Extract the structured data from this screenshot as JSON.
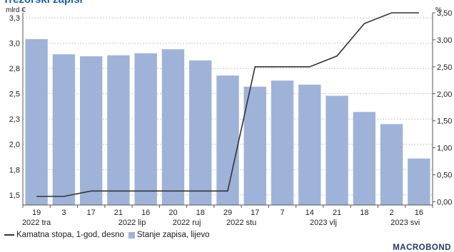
{
  "chart_title": "Trezorski zapisi",
  "brand": "MACROBOND",
  "chart_data": {
    "type": "bar+line",
    "left_unit": "mlrd €",
    "right_unit": "%",
    "left_ylim": [
      1.4,
      3.3
    ],
    "right_ylim": [
      -0.06,
      3.5
    ],
    "left_ticks": [
      "1,5",
      "1,8",
      "2,0",
      "2,3",
      "2,5",
      "2,8",
      "3,0",
      "3,3"
    ],
    "left_tick_values": [
      1.5,
      1.75,
      2.0,
      2.25,
      2.5,
      2.75,
      3.0,
      3.25
    ],
    "right_ticks": [
      "0,00",
      "0,50",
      "1,00",
      "1,50",
      "2,00",
      "2,50",
      "3,00",
      "3,50"
    ],
    "right_tick_values": [
      0,
      0.5,
      1.0,
      1.5,
      2.0,
      2.5,
      3.0,
      3.5
    ],
    "grid": true,
    "x_labels": [
      "19",
      "3",
      "17",
      "21",
      "16",
      "20",
      "18",
      "29",
      "17",
      "7",
      "14",
      "21",
      "18",
      "2",
      "16"
    ],
    "x_group_labels": [
      {
        "label": "2022 tra",
        "index": 0
      },
      {
        "label": "2022 lip",
        "index": 3.5
      },
      {
        "label": "2022 ruj",
        "index": 5.5
      },
      {
        "label": "2022 stu",
        "index": 7.5
      },
      {
        "label": "2023 vlj",
        "index": 10.5
      },
      {
        "label": "2023 svi",
        "index": 13.5
      }
    ],
    "series": [
      {
        "name": "Stanje zapisa, lijevo",
        "type": "bar",
        "axis": "left",
        "color": "#9fb3d9",
        "values": [
          3.04,
          2.89,
          2.87,
          2.88,
          2.9,
          2.94,
          2.83,
          2.68,
          2.57,
          2.63,
          2.59,
          2.48,
          2.32,
          2.2,
          1.86
        ]
      },
      {
        "name": "Kamatna stopa, 1-god, desno",
        "type": "line",
        "axis": "right",
        "color": "#333333",
        "points": [
          [
            0,
            0.1
          ],
          [
            1,
            0.1
          ],
          [
            2,
            0.2
          ],
          [
            3,
            0.2
          ],
          [
            4,
            0.2
          ],
          [
            5,
            0.2
          ],
          [
            6,
            0.2
          ],
          [
            7,
            0.2
          ],
          [
            8,
            2.5
          ],
          [
            9,
            2.5
          ],
          [
            10,
            2.5
          ],
          [
            11,
            2.7
          ],
          [
            12,
            3.3
          ],
          [
            13,
            3.5
          ],
          [
            14,
            3.5
          ]
        ]
      }
    ]
  }
}
